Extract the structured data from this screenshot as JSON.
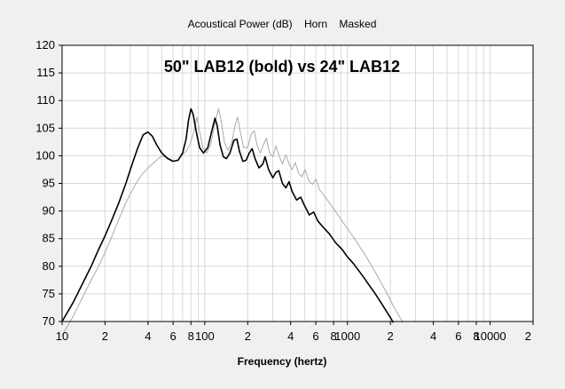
{
  "window": {
    "header": "Acoustical Power (dB)    Horn    Masked"
  },
  "chart_data": {
    "type": "line",
    "title": "50\" LAB12 (bold) vs 24\" LAB12",
    "xlabel": "Frequency (hertz)",
    "ylabel": "",
    "x_scale": "log",
    "xlim": [
      10,
      20000
    ],
    "ylim": [
      70,
      120
    ],
    "grid": true,
    "y_ticks": [
      70,
      75,
      80,
      85,
      90,
      95,
      100,
      105,
      110,
      115,
      120
    ],
    "x_ticks": [
      {
        "value": 10,
        "label": "10"
      },
      {
        "value": 20,
        "label": "2"
      },
      {
        "value": 40,
        "label": "4"
      },
      {
        "value": 60,
        "label": "6"
      },
      {
        "value": 80,
        "label": "8"
      },
      {
        "value": 100,
        "label": "100"
      },
      {
        "value": 200,
        "label": "2"
      },
      {
        "value": 400,
        "label": "4"
      },
      {
        "value": 600,
        "label": "6"
      },
      {
        "value": 800,
        "label": "8"
      },
      {
        "value": 1000,
        "label": "1000"
      },
      {
        "value": 2000,
        "label": "2"
      },
      {
        "value": 4000,
        "label": "4"
      },
      {
        "value": 6000,
        "label": "6"
      },
      {
        "value": 8000,
        "label": "8"
      },
      {
        "value": 10000,
        "label": "10000"
      },
      {
        "value": 20000,
        "label": "2"
      }
    ],
    "series": [
      {
        "color": "#000000",
        "bold": true,
        "points": [
          [
            10,
            70.0
          ],
          [
            12,
            73.5
          ],
          [
            14,
            77.0
          ],
          [
            16,
            80.0
          ],
          [
            18,
            83.0
          ],
          [
            20,
            85.5
          ],
          [
            22,
            88.0
          ],
          [
            25,
            91.5
          ],
          [
            28,
            95.0
          ],
          [
            31,
            98.5
          ],
          [
            34,
            101.5
          ],
          [
            37,
            103.8
          ],
          [
            40,
            104.3
          ],
          [
            43,
            103.5
          ],
          [
            46,
            102.0
          ],
          [
            50,
            100.5
          ],
          [
            55,
            99.5
          ],
          [
            60,
            99.0
          ],
          [
            65,
            99.2
          ],
          [
            70,
            100.5
          ],
          [
            74,
            103.0
          ],
          [
            77,
            106.5
          ],
          [
            80,
            108.5
          ],
          [
            83,
            107.5
          ],
          [
            87,
            104.5
          ],
          [
            92,
            101.5
          ],
          [
            98,
            100.5
          ],
          [
            105,
            101.5
          ],
          [
            112,
            104.5
          ],
          [
            118,
            106.8
          ],
          [
            122,
            105.5
          ],
          [
            128,
            102.0
          ],
          [
            135,
            99.8
          ],
          [
            142,
            99.5
          ],
          [
            150,
            100.5
          ],
          [
            160,
            102.8
          ],
          [
            168,
            103.0
          ],
          [
            175,
            100.8
          ],
          [
            185,
            99.0
          ],
          [
            195,
            99.2
          ],
          [
            205,
            100.5
          ],
          [
            215,
            101.3
          ],
          [
            225,
            99.5
          ],
          [
            240,
            97.8
          ],
          [
            255,
            98.5
          ],
          [
            265,
            99.8
          ],
          [
            280,
            97.5
          ],
          [
            300,
            96.0
          ],
          [
            315,
            97.0
          ],
          [
            330,
            97.3
          ],
          [
            350,
            95.0
          ],
          [
            370,
            94.2
          ],
          [
            390,
            95.3
          ],
          [
            410,
            93.5
          ],
          [
            440,
            92.0
          ],
          [
            470,
            92.5
          ],
          [
            500,
            91.0
          ],
          [
            540,
            89.3
          ],
          [
            580,
            89.8
          ],
          [
            620,
            88.2
          ],
          [
            680,
            87.0
          ],
          [
            750,
            85.8
          ],
          [
            830,
            84.2
          ],
          [
            920,
            83.0
          ],
          [
            1000,
            81.7
          ],
          [
            1100,
            80.5
          ],
          [
            1200,
            79.2
          ],
          [
            1300,
            78.0
          ],
          [
            1400,
            76.8
          ],
          [
            1550,
            75.2
          ],
          [
            1700,
            73.6
          ],
          [
            1850,
            72.1
          ],
          [
            2000,
            70.7
          ],
          [
            2100,
            69.8
          ]
        ]
      },
      {
        "color": "#aaaaaa",
        "bold": false,
        "points": [
          [
            10,
            67.5
          ],
          [
            12,
            71.0
          ],
          [
            14,
            74.5
          ],
          [
            16,
            77.5
          ],
          [
            18,
            80.0
          ],
          [
            20,
            82.5
          ],
          [
            22,
            85.0
          ],
          [
            25,
            88.5
          ],
          [
            28,
            91.5
          ],
          [
            30,
            93.0
          ],
          [
            33,
            95.0
          ],
          [
            36,
            96.5
          ],
          [
            40,
            97.8
          ],
          [
            45,
            99.0
          ],
          [
            50,
            100.0
          ],
          [
            55,
            99.6
          ],
          [
            60,
            99.0
          ],
          [
            65,
            99.3
          ],
          [
            70,
            100.2
          ],
          [
            75,
            101.0
          ],
          [
            80,
            102.5
          ],
          [
            85,
            105.0
          ],
          [
            88,
            107.0
          ],
          [
            92,
            104.5
          ],
          [
            97,
            101.5
          ],
          [
            103,
            100.5
          ],
          [
            110,
            102.0
          ],
          [
            118,
            106.0
          ],
          [
            125,
            108.5
          ],
          [
            130,
            106.5
          ],
          [
            137,
            102.5
          ],
          [
            145,
            101.0
          ],
          [
            155,
            102.5
          ],
          [
            163,
            105.5
          ],
          [
            170,
            107.0
          ],
          [
            177,
            104.5
          ],
          [
            187,
            101.5
          ],
          [
            200,
            101.5
          ],
          [
            212,
            104.0
          ],
          [
            222,
            104.5
          ],
          [
            232,
            102.0
          ],
          [
            245,
            100.5
          ],
          [
            258,
            102.0
          ],
          [
            270,
            103.2
          ],
          [
            285,
            100.5
          ],
          [
            300,
            99.8
          ],
          [
            315,
            101.8
          ],
          [
            330,
            100.2
          ],
          [
            350,
            98.5
          ],
          [
            370,
            100.2
          ],
          [
            390,
            98.5
          ],
          [
            410,
            97.5
          ],
          [
            430,
            98.8
          ],
          [
            455,
            96.8
          ],
          [
            480,
            96.2
          ],
          [
            505,
            97.5
          ],
          [
            535,
            95.5
          ],
          [
            570,
            94.8
          ],
          [
            600,
            95.8
          ],
          [
            640,
            93.8
          ],
          [
            700,
            92.5
          ],
          [
            760,
            91.2
          ],
          [
            830,
            89.8
          ],
          [
            900,
            88.5
          ],
          [
            1000,
            86.8
          ],
          [
            1100,
            85.3
          ],
          [
            1200,
            83.8
          ],
          [
            1350,
            81.8
          ],
          [
            1500,
            79.8
          ],
          [
            1700,
            77.3
          ],
          [
            1900,
            75.0
          ],
          [
            2100,
            72.8
          ],
          [
            2300,
            71.0
          ],
          [
            2450,
            69.8
          ]
        ]
      }
    ]
  }
}
